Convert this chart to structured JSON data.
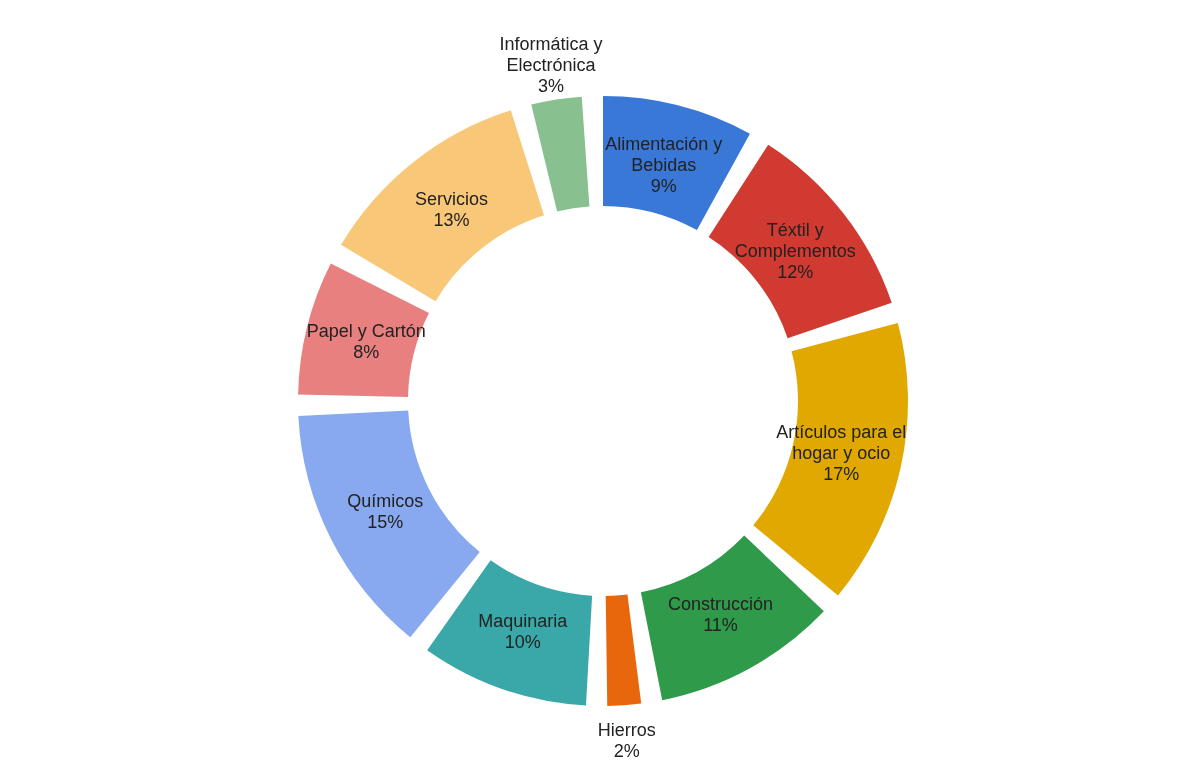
{
  "chart_data": {
    "type": "donut",
    "categories": [
      "Alimentación y Bebidas",
      "Téxtil y Complementos",
      "Artículos para el hogar y ocio",
      "Construcción",
      "Hierros",
      "Maquinaria",
      "Químicos",
      "Papel y Cartón",
      "Servicios",
      "Informática y Electrónica"
    ],
    "values": [
      9,
      12,
      17,
      11,
      2,
      10,
      15,
      8,
      13,
      3
    ],
    "value_labels": [
      "9%",
      "12%",
      "17%",
      "11%",
      "2%",
      "10%",
      "15%",
      "8%",
      "13%",
      "3%"
    ],
    "colors": [
      "#3a78d8",
      "#d03a30",
      "#e0a800",
      "#2e9a4a",
      "#e8670c",
      "#3aa8a8",
      "#88a8f0",
      "#e88080",
      "#f8c878",
      "#88c090"
    ],
    "legend": false
  }
}
